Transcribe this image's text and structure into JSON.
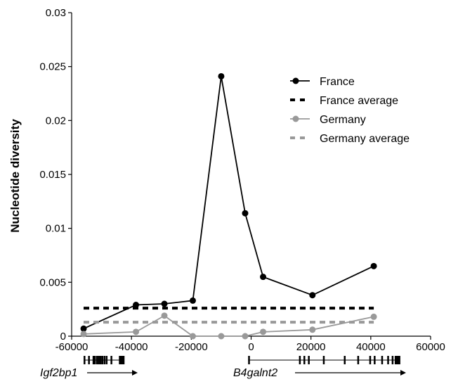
{
  "chart_data": {
    "type": "line",
    "ylabel": "Nucleotide diversity",
    "xlabel": "",
    "xlim": [
      -60000,
      60000
    ],
    "ylim": [
      0,
      0.03
    ],
    "x_ticks": [
      "-60000",
      "-40000",
      "-20000",
      "0",
      "20000",
      "40000",
      "60000"
    ],
    "y_ticks": [
      "0",
      "0.005",
      "0.01",
      "0.015",
      "0.02",
      "0.025",
      "0.03"
    ],
    "grid": false,
    "legend_position": "top-right",
    "series": [
      {
        "name": "France",
        "style": "line-marker",
        "color": "#000000",
        "x": [
          -56000,
          -38500,
          -29000,
          -19500,
          -10000,
          -2000,
          4000,
          20500,
          41000
        ],
        "y": [
          0.0007,
          0.0029,
          0.003,
          0.0033,
          0.0241,
          0.0114,
          0.0055,
          0.0038,
          0.0065
        ]
      },
      {
        "name": "France average",
        "style": "dashed",
        "color": "#000000",
        "x": [
          -56000,
          41000
        ],
        "y": [
          0.0026,
          0.0026
        ]
      },
      {
        "name": "Germany",
        "style": "line-marker",
        "color": "#999999",
        "x": [
          -56000,
          -38500,
          -29000,
          -19500,
          -10000,
          -2000,
          4000,
          20500,
          41000
        ],
        "y": [
          0.0002,
          0.0004,
          0.0019,
          0.0,
          0.0,
          0.0,
          0.0004,
          0.0006,
          0.0018
        ]
      },
      {
        "name": "Germany average",
        "style": "dashed",
        "color": "#999999",
        "x": [
          -56000,
          41000
        ],
        "y": [
          0.0013,
          0.0013
        ]
      }
    ],
    "genes": [
      {
        "name": "Igf2bp1",
        "start": -56000,
        "end": -44000,
        "strand": "+",
        "exons": [
          -56000,
          -54500,
          -53000,
          -52500,
          -51800,
          -51200,
          -50600,
          -50000,
          -49300,
          -48600,
          -47000,
          -44200
        ]
      },
      {
        "name": "B4galnt2",
        "start": -1000,
        "end": 49000,
        "strand": "+",
        "exons": [
          -1000,
          16000,
          17500,
          19000,
          24000,
          31000,
          35500,
          39500,
          41000,
          43500,
          45500,
          47000,
          48000
        ]
      }
    ]
  }
}
